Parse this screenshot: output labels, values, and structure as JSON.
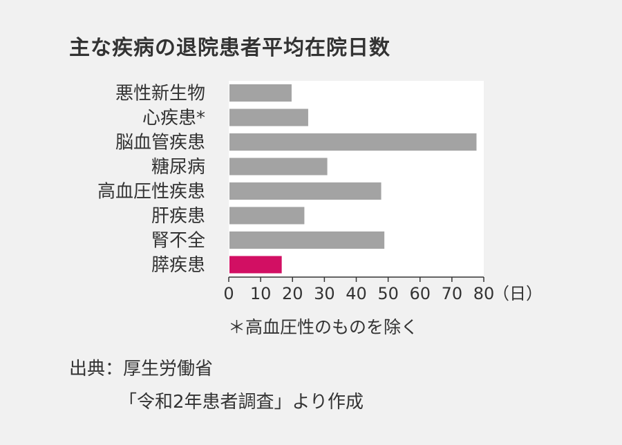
{
  "title": "主な疾病の退院患者平均在院日数",
  "chart_data": {
    "type": "bar",
    "orientation": "horizontal",
    "categories": [
      "悪性新生物",
      "心疾患*",
      "脳血管疾患",
      "糖尿病",
      "高血圧性疾患",
      "肝疾患",
      "腎不全",
      "膵疾患"
    ],
    "values": [
      19.5,
      24.7,
      77.5,
      30.7,
      47.6,
      23.5,
      48.6,
      16.4
    ],
    "highlight_category": "膵疾患",
    "x_ticks": [
      "0",
      "10",
      "20",
      "30",
      "40",
      "50",
      "60",
      "70",
      "80"
    ],
    "xlim": [
      0,
      80
    ],
    "x_unit": "（日）",
    "grid": false,
    "colors": {
      "bar": "#a3a3a3",
      "highlight": "#d20f63",
      "plot_background": "#ffffff",
      "axis": "#333333",
      "highlight_label": "#d20f63"
    }
  },
  "footnote": "＊高血圧性のものを除く",
  "source": {
    "line1": "出典：厚生労働省",
    "line2": "「令和2年患者調査」より作成"
  }
}
